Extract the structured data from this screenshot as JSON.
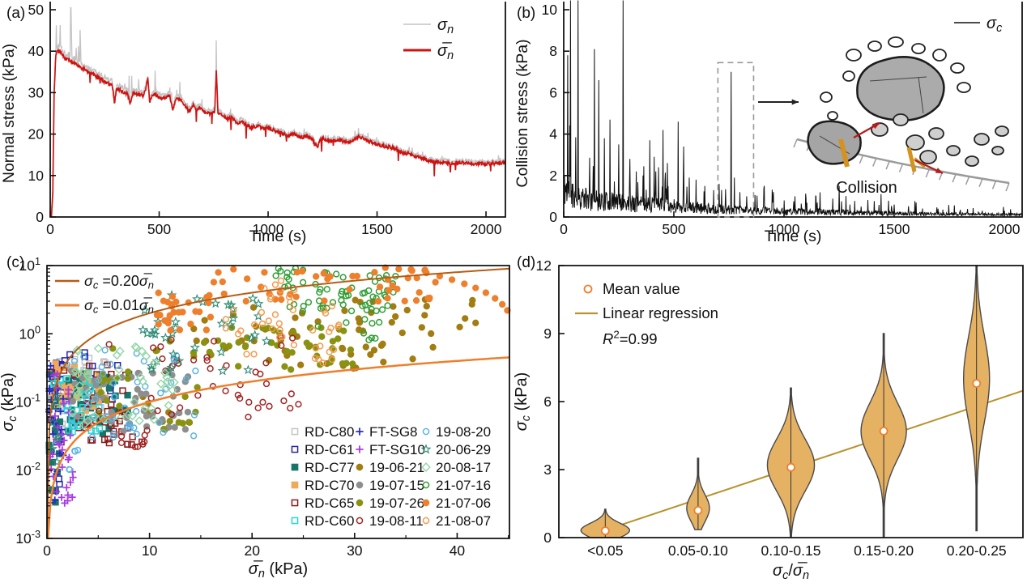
{
  "panels": {
    "a_label": "(a)",
    "b_label": "(b)",
    "c_label": "(c)",
    "d_label": "(d)"
  },
  "chart_data": [
    {
      "id": "a",
      "type": "line",
      "xlabel": "Time (s)",
      "ylabel": "Normal stress (kPa)",
      "xlim": [
        0,
        2089
      ],
      "ylim": [
        0,
        50
      ],
      "xticks": [
        0,
        500,
        1000,
        1500,
        2000
      ],
      "yticks": [
        0,
        10,
        20,
        30,
        40,
        50
      ],
      "legend": [
        {
          "label": "σ_n",
          "color": "#c3c3c3",
          "width": 1.6
        },
        {
          "label": "σ̅_n",
          "color": "#cd1310",
          "width": 3
        }
      ],
      "anchors": [
        [
          0,
          0
        ],
        [
          6,
          0.3
        ],
        [
          12,
          6
        ],
        [
          18,
          30
        ],
        [
          26,
          39.5
        ],
        [
          40,
          40
        ],
        [
          60,
          38.6
        ],
        [
          90,
          37.6
        ],
        [
          130,
          36.4
        ],
        [
          170,
          35.2
        ],
        [
          210,
          34
        ],
        [
          250,
          32.6
        ],
        [
          285,
          31.6
        ],
        [
          295,
          27.6
        ],
        [
          305,
          31
        ],
        [
          330,
          30.4
        ],
        [
          355,
          29.6
        ],
        [
          368,
          27.2
        ],
        [
          382,
          30
        ],
        [
          400,
          29.6
        ],
        [
          430,
          29.2
        ],
        [
          448,
          33.4
        ],
        [
          456,
          27.8
        ],
        [
          470,
          29.6
        ],
        [
          500,
          29
        ],
        [
          525,
          28.6
        ],
        [
          548,
          29.4
        ],
        [
          562,
          25.8
        ],
        [
          578,
          28.6
        ],
        [
          600,
          28.2
        ],
        [
          618,
          26.8
        ],
        [
          636,
          25.4
        ],
        [
          655,
          27
        ],
        [
          672,
          26
        ],
        [
          690,
          26.4
        ],
        [
          710,
          25.2
        ],
        [
          735,
          25
        ],
        [
          755,
          25.4
        ],
        [
          762,
          35.4
        ],
        [
          770,
          25
        ],
        [
          795,
          24.6
        ],
        [
          815,
          23.6
        ],
        [
          835,
          24
        ],
        [
          858,
          22.6
        ],
        [
          880,
          23
        ],
        [
          900,
          22.2
        ],
        [
          925,
          21.6
        ],
        [
          950,
          22
        ],
        [
          980,
          21.2
        ],
        [
          1005,
          21.6
        ],
        [
          1035,
          20.6
        ],
        [
          1060,
          20.2
        ],
        [
          1090,
          19.6
        ],
        [
          1120,
          20
        ],
        [
          1150,
          19.2
        ],
        [
          1180,
          19.6
        ],
        [
          1205,
          18.6
        ],
        [
          1228,
          16.6
        ],
        [
          1240,
          19
        ],
        [
          1268,
          18.6
        ],
        [
          1300,
          18.2
        ],
        [
          1330,
          18.5
        ],
        [
          1360,
          18
        ],
        [
          1390,
          18.4
        ],
        [
          1415,
          19.4
        ],
        [
          1438,
          19
        ],
        [
          1465,
          18.2
        ],
        [
          1495,
          17.6
        ],
        [
          1525,
          17.2
        ],
        [
          1555,
          16.8
        ],
        [
          1585,
          16.6
        ],
        [
          1615,
          15.6
        ],
        [
          1645,
          15.2
        ],
        [
          1675,
          14.6
        ],
        [
          1705,
          14.2
        ],
        [
          1738,
          13.6
        ],
        [
          1768,
          13.3
        ],
        [
          1800,
          13.1
        ],
        [
          1840,
          12.9
        ],
        [
          1880,
          13.1
        ],
        [
          1920,
          12.8
        ],
        [
          1960,
          12.9
        ],
        [
          2000,
          12.8
        ],
        [
          2050,
          13
        ],
        [
          2089,
          13.1
        ]
      ],
      "spike": {
        "t": 762,
        "red": 35.4,
        "gray": 42.6
      }
    },
    {
      "id": "b",
      "type": "line",
      "xlabel": "Time (s)",
      "ylabel": "Collision stress (kPa)",
      "xlim": [
        0,
        2081
      ],
      "ylim": [
        0,
        10
      ],
      "xticks": [
        0,
        500,
        1000,
        1500,
        2000
      ],
      "yticks": [
        0,
        2,
        4,
        6,
        8,
        10
      ],
      "legend": [
        {
          "label": "σ_c",
          "color": "#111111",
          "width": 1.6
        }
      ],
      "baseline": [
        [
          0,
          1.7
        ],
        [
          60,
          1.2
        ],
        [
          120,
          1.0
        ],
        [
          200,
          0.9
        ],
        [
          300,
          0.8
        ],
        [
          400,
          0.72
        ],
        [
          500,
          0.65
        ],
        [
          600,
          0.52
        ],
        [
          700,
          0.46
        ],
        [
          800,
          0.4
        ],
        [
          900,
          0.36
        ],
        [
          1000,
          0.33
        ],
        [
          1100,
          0.3
        ],
        [
          1200,
          0.28
        ],
        [
          1300,
          0.26
        ],
        [
          1400,
          0.24
        ],
        [
          1500,
          0.21
        ],
        [
          1600,
          0.19
        ],
        [
          1700,
          0.17
        ],
        [
          1800,
          0.16
        ],
        [
          1900,
          0.15
        ],
        [
          2081,
          0.14
        ]
      ],
      "spikes": [
        [
          18,
          7.8
        ],
        [
          30,
          10.5
        ],
        [
          65,
          10.5
        ],
        [
          140,
          8.1
        ],
        [
          160,
          6.6
        ],
        [
          185,
          3.8
        ],
        [
          210,
          4.7
        ],
        [
          250,
          3.5
        ],
        [
          270,
          10.5
        ],
        [
          300,
          2.8
        ],
        [
          330,
          2.2
        ],
        [
          360,
          2.0
        ],
        [
          390,
          3.7
        ],
        [
          410,
          2.9
        ],
        [
          430,
          2.4
        ],
        [
          450,
          4.2
        ],
        [
          470,
          2.6
        ],
        [
          520,
          4.6
        ],
        [
          545,
          3.4
        ],
        [
          570,
          1.9
        ],
        [
          600,
          1.8
        ],
        [
          640,
          1.5
        ],
        [
          680,
          1.3
        ],
        [
          705,
          1.6
        ],
        [
          760,
          7.0
        ],
        [
          775,
          1.9
        ],
        [
          800,
          1.2
        ],
        [
          830,
          1.0
        ],
        [
          910,
          1.5
        ],
        [
          950,
          0.9
        ],
        [
          1000,
          0.8
        ],
        [
          1050,
          1.0
        ],
        [
          1100,
          0.9
        ],
        [
          1150,
          0.7
        ],
        [
          1250,
          1.5
        ],
        [
          1300,
          0.6
        ],
        [
          1350,
          0.5
        ],
        [
          1440,
          1.1
        ],
        [
          1500,
          0.6
        ],
        [
          1600,
          0.7
        ],
        [
          1700,
          0.4
        ],
        [
          1800,
          0.35
        ],
        [
          1900,
          0.3
        ],
        [
          2000,
          0.3
        ]
      ],
      "highlight_box": {
        "t1": 700,
        "t2": 862,
        "v1": 0,
        "v2": 7.45
      },
      "inset": {
        "label": "Collision"
      }
    },
    {
      "id": "c",
      "type": "scatter",
      "xlabel": "σ̅_n (kPa)",
      "ylabel": "σ_c (kPa)",
      "xlim": [
        0,
        45.1
      ],
      "ylog": [
        -3,
        1
      ],
      "xticks": [
        0,
        10,
        20,
        30,
        40
      ],
      "xminor_step": 5,
      "reflines": [
        {
          "label": "σ_c =0.20σ̅_n",
          "k": 0.2,
          "color": "#b85c12",
          "width": 2
        },
        {
          "label": "σ_c =0.01σ̅_n",
          "k": 0.01,
          "color": "#ee7f2d",
          "width": 2.5
        }
      ],
      "series": [
        {
          "label": "RD-C80",
          "marker": "square",
          "color": "#c4c4c4",
          "filled": false,
          "clusters": [
            [
              40,
              0.3,
              6.5,
              0.04,
              0.45
            ]
          ]
        },
        {
          "label": "RD-C61",
          "marker": "square",
          "color": "#2424ad",
          "filled": false,
          "clusters": [
            [
              40,
              0.3,
              7,
              0.09,
              0.55
            ],
            [
              8,
              0.3,
              1.3,
              0.004,
              0.06
            ]
          ]
        },
        {
          "label": "RD-C77",
          "marker": "square",
          "color": "#17756a",
          "filled": true,
          "clusters": [
            [
              48,
              0.2,
              8,
              0.03,
              0.28
            ],
            [
              10,
              0.2,
              1.2,
              0.003,
              0.05
            ]
          ]
        },
        {
          "label": "RD-C70",
          "marker": "square",
          "color": "#f0a85a",
          "filled": true,
          "clusters": [
            [
              34,
              0.3,
              6,
              0.06,
              0.4
            ]
          ]
        },
        {
          "label": "RD-C65",
          "marker": "square",
          "color": "#8c1a1a",
          "filled": false,
          "clusters": [
            [
              40,
              0.4,
              8,
              0.025,
              0.35
            ],
            [
              5,
              7.5,
              9.5,
              0.02,
              0.035
            ]
          ]
        },
        {
          "label": "RD-C60",
          "marker": "square",
          "color": "#2bd4d4",
          "filled": false,
          "clusters": [
            [
              40,
              0.2,
              6,
              0.035,
              0.35
            ]
          ]
        },
        {
          "label": "FT-SG8",
          "marker": "plus",
          "color": "#2b2bc0",
          "filled": true,
          "clusters": [
            [
              30,
              0.1,
              1.6,
              0.003,
              0.35
            ]
          ]
        },
        {
          "label": "FT-SG10",
          "marker": "plus",
          "color": "#a83ce0",
          "filled": true,
          "clusters": [
            [
              34,
              0.3,
              2.6,
              0.003,
              0.28
            ]
          ]
        },
        {
          "label": "19-06-21",
          "marker": "circle",
          "color": "#a17d12",
          "filled": true,
          "clusters": [
            [
              48,
              14,
              38,
              0.3,
              2.5
            ],
            [
              14,
              28,
              42,
              1.2,
              5
            ],
            [
              6,
              8,
              14,
              0.05,
              0.15
            ]
          ]
        },
        {
          "label": "19-07-15",
          "marker": "circle",
          "color": "#8e8e8e",
          "filled": true,
          "clusters": [
            [
              52,
              2,
              14,
              0.035,
              0.3
            ]
          ]
        },
        {
          "label": "19-07-26",
          "marker": "circle",
          "color": "#8a9212",
          "filled": true,
          "clusters": [
            [
              42,
              15,
              30,
              0.25,
              1.3
            ],
            [
              20,
              5,
              15,
              0.05,
              0.8
            ],
            [
              5,
              11,
              14,
              0.04,
              0.07
            ]
          ]
        },
        {
          "label": "19-08-11",
          "marker": "circle",
          "color": "#a32424",
          "filled": false,
          "clusters": [
            [
              42,
              5,
              25,
              0.06,
              0.9
            ],
            [
              8,
              7,
              10,
              0.02,
              0.04
            ]
          ]
        },
        {
          "label": "19-08-20",
          "marker": "circle",
          "color": "#5bb4e6",
          "filled": false,
          "clusters": [
            [
              46,
              1.5,
              15,
              0.03,
              0.6
            ],
            [
              5,
              2,
              4.5,
              0.01,
              0.02
            ]
          ]
        },
        {
          "label": "20-06-29",
          "marker": "star",
          "color": "#2e8c74",
          "filled": false,
          "clusters": [
            [
              38,
              9,
              22,
              0.25,
              4
            ],
            [
              7,
              0.3,
              1.2,
              0.01,
              0.12
            ]
          ]
        },
        {
          "label": "20-08-17",
          "marker": "diamond",
          "color": "#92d6a6",
          "filled": false,
          "clusters": [
            [
              44,
              2.5,
              13,
              0.045,
              0.7
            ]
          ]
        },
        {
          "label": "21-07-16",
          "marker": "circle",
          "color": "#2f9e35",
          "filled": false,
          "clusters": [
            [
              66,
              22,
              34,
              2,
              9.3
            ],
            [
              9,
              26,
              33,
              0.8,
              1.8
            ]
          ]
        },
        {
          "label": "21-07-06",
          "marker": "circle",
          "color": "#ee7f2d",
          "filled": true,
          "clusters": [
            [
              28,
              10.5,
              16,
              1,
              4
            ],
            [
              46,
              16,
              38,
              3,
              9
            ]
          ],
          "points": [
            [
              33,
              9.3
            ],
            [
              34.3,
              8.9
            ],
            [
              35.6,
              8.4
            ],
            [
              37,
              7.8
            ],
            [
              38.3,
              7.0
            ],
            [
              39.5,
              6.2
            ],
            [
              40.7,
              5.4
            ],
            [
              41.8,
              4.7
            ],
            [
              42.8,
              4.0
            ],
            [
              43.7,
              3.3
            ],
            [
              44.4,
              2.7
            ],
            [
              44.9,
              2.2
            ]
          ]
        },
        {
          "label": "21-08-07",
          "marker": "circle",
          "color": "#f49a4e",
          "filled": false,
          "clusters": [
            [
              36,
              17,
              30,
              0.35,
              3
            ],
            [
              8,
              20,
              26,
              3,
              6
            ]
          ]
        }
      ]
    },
    {
      "id": "d",
      "type": "violin",
      "xlabel": "σ_c/σ̅_n",
      "ylabel": "σ_c (kPa)",
      "ylim": [
        0,
        12
      ],
      "yticks": [
        0,
        3,
        6,
        9,
        12
      ],
      "categories": [
        "<0.05",
        "0.05-0.10",
        "0.10-0.15",
        "0.15-0.20",
        "0.20-0.25"
      ],
      "violins": [
        {
          "mode": 0.32,
          "sig": 0.32,
          "hw": 30,
          "whisker": [
            0,
            1.25
          ],
          "mean": 0.3
        },
        {
          "mode": 1.3,
          "sig": 0.6,
          "hw": 14,
          "whisker": [
            0.35,
            3.5
          ],
          "mean": 1.2
        },
        {
          "mode": 3.2,
          "sig": 1.15,
          "hw": 29,
          "whisker": [
            0.02,
            6.6
          ],
          "mean": 3.1
        },
        {
          "mode": 4.7,
          "sig": 1.25,
          "hw": 28,
          "whisker": [
            0.02,
            9.0
          ],
          "mean": 4.7
        },
        {
          "mode": 7.0,
          "sig": 1.9,
          "hw": 16,
          "whisker": [
            0.3,
            12
          ],
          "mean": 6.8
        }
      ],
      "fill": "#e5b163",
      "stroke": "#4a4a4a",
      "regression": {
        "label": "Linear regression",
        "color": "#b8922d",
        "y1": 0.33,
        "y2": 6.48
      },
      "mean_legend": {
        "label": "Mean value",
        "color": "#ee7f2d"
      },
      "r2": "R^2=0.99"
    }
  ]
}
